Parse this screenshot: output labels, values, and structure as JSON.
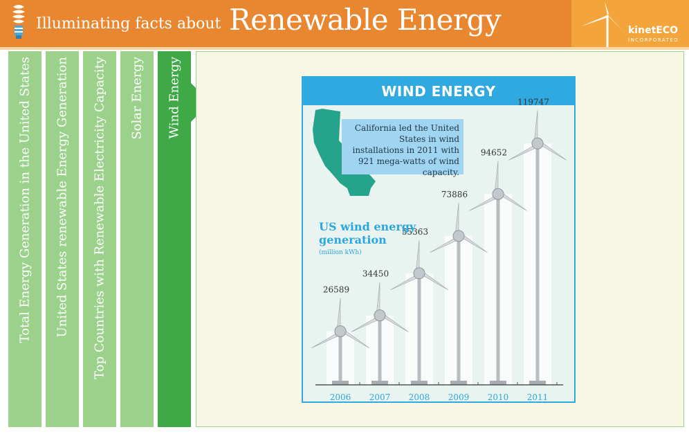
{
  "header": {
    "title_prefix": "Illuminating facts about",
    "title_main": "Renewable Energy",
    "logo_name": "kinetECO",
    "logo_sub": "INCORPORATED"
  },
  "tabs": [
    {
      "label": "Total Energy Generation in the United States",
      "active": false
    },
    {
      "label": "United States renewable Energy Generation",
      "active": false
    },
    {
      "label": "Top Countries with Renewable Electricity Capacity",
      "active": false
    },
    {
      "label": "Solar Energy",
      "active": false
    },
    {
      "label": "Wind Energy",
      "active": true
    }
  ],
  "colors": {
    "header": "#e8872f",
    "tab": "#9cd18c",
    "tab_active": "#3fa847",
    "chart_accent": "#30a8e0",
    "california": "#26a48b"
  },
  "annotation": "California led the United States in wind installations in 2011 with 921 mega-watts of wind capacity.",
  "chart_data": {
    "type": "bar",
    "title": "WIND ENERGY",
    "subtitle": "US wind energy generation",
    "unit": "(million kWh)",
    "categories": [
      "2006",
      "2007",
      "2008",
      "2009",
      "2010",
      "2011"
    ],
    "values": [
      26589,
      34450,
      55363,
      73886,
      94652,
      119747
    ],
    "value_labels": [
      "26589",
      "34450",
      "55363",
      "73886",
      "94652",
      "119747"
    ],
    "marker": "wind-turbine-icon",
    "grid": false
  }
}
